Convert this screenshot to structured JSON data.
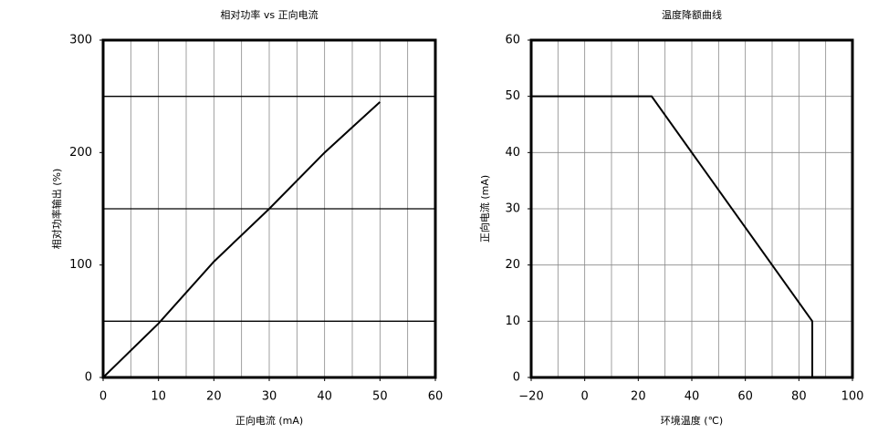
{
  "chart_data": [
    {
      "type": "line",
      "title": "相对功率 vs 正向电流",
      "x_label": "正向电流 (mA)",
      "y_label": "相对功率输出 (%)",
      "x": [
        0,
        10,
        20,
        30,
        40,
        50
      ],
      "values": [
        0,
        48,
        103,
        150,
        200,
        245
      ],
      "color": "#000000",
      "xlim": [
        0,
        60
      ],
      "xticks": [
        0,
        10,
        20,
        30,
        40,
        50,
        60
      ],
      "ylim": [
        0,
        300
      ],
      "yticks": [
        0,
        100,
        200,
        300
      ],
      "xgrid": [
        5,
        10,
        15,
        20,
        25,
        30,
        35,
        40,
        45,
        50,
        55
      ],
      "ygrid": [
        50,
        150,
        250
      ],
      "xgrid_color": "#888888",
      "ygrid_color": "#000000"
    },
    {
      "type": "line",
      "title": "温度降额曲线",
      "x_label": "环境温度 (℃)",
      "y_label": "正向电流 (mA)",
      "x": [
        -20,
        25,
        85,
        85
      ],
      "values": [
        50,
        50,
        10,
        0
      ],
      "color": "#000000",
      "xlim": [
        -20,
        100
      ],
      "xticks": [
        {
          "value": -20,
          "label": "−20"
        },
        0,
        20,
        40,
        60,
        80,
        100
      ],
      "ylim": [
        0,
        60
      ],
      "yticks": [
        0,
        10,
        20,
        30,
        40,
        50,
        60
      ],
      "xgrid": [
        -10,
        0,
        10,
        20,
        30,
        40,
        50,
        60,
        70,
        80,
        90
      ],
      "ygrid": [
        10,
        20,
        30,
        40,
        50
      ],
      "xgrid_color": "#888888",
      "ygrid_color": "#888888"
    }
  ]
}
